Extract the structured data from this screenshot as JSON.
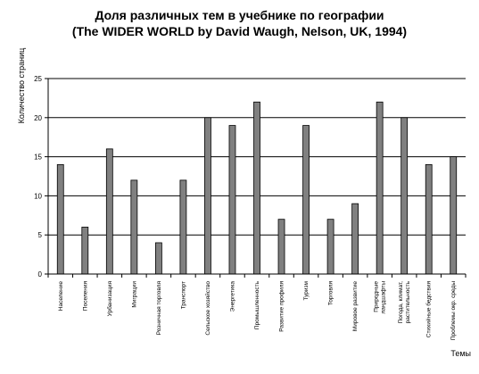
{
  "chart_data": {
    "type": "bar",
    "title": "Доля различных тем в учебнике по географии",
    "subtitle": "(The WIDER WORLD by David Waugh, Nelson, UK, 1994)",
    "xlabel": "Темы",
    "ylabel": "Количество страниц",
    "ylim": [
      0,
      25
    ],
    "yticks": [
      "0",
      "5",
      "10",
      "15",
      "20",
      "25"
    ],
    "grid": true,
    "bar_color": "#808080",
    "categories": [
      [
        "Население"
      ],
      [
        "Поселения"
      ],
      [
        "Урбанизация"
      ],
      [
        "Миграции"
      ],
      [
        "Розничная торговля"
      ],
      [
        "Транспорт"
      ],
      [
        "Сельское хозяйство"
      ],
      [
        "Энергетика"
      ],
      [
        "Промышленность"
      ],
      [
        "Развитие профиля"
      ],
      [
        "Туризм"
      ],
      [
        "Торговля"
      ],
      [
        "Мировое развитие"
      ],
      [
        "Природные",
        "ландшафты"
      ],
      [
        "Погода, климат,",
        "растительность"
      ],
      [
        "Стихийные бедствия"
      ],
      [
        "Проблемы окр. среды"
      ]
    ],
    "values": [
      14,
      6,
      16,
      12,
      4,
      12,
      20,
      19,
      22,
      7,
      19,
      7,
      9,
      22,
      20,
      14,
      15
    ]
  }
}
